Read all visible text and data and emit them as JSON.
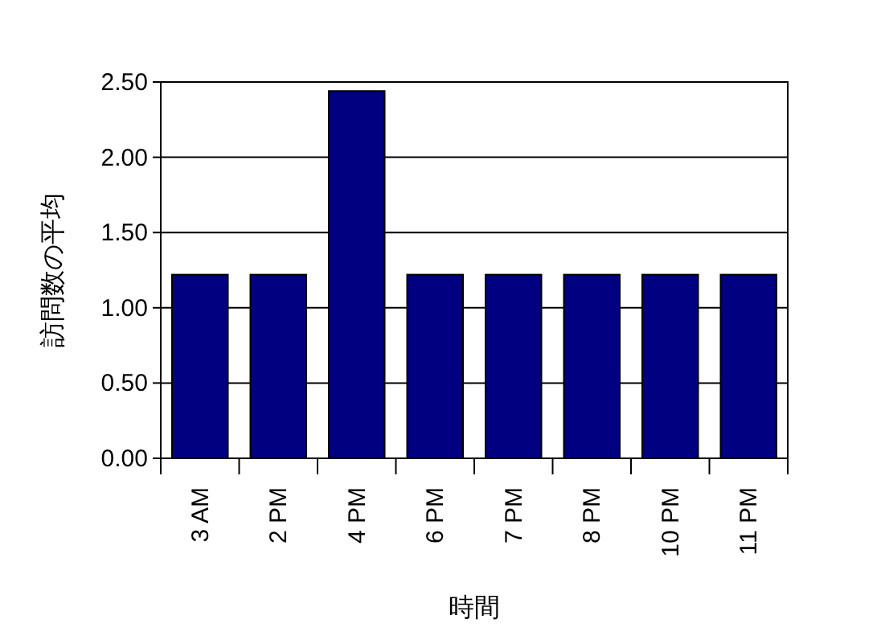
{
  "chart_data": {
    "type": "bar",
    "xlabel": "時間",
    "ylabel": "訪問数の平均",
    "categories": [
      "3 AM",
      "2 PM",
      "4 PM",
      "6 PM",
      "7 PM",
      "8 PM",
      "10 PM",
      "11 PM"
    ],
    "values": [
      1.22,
      1.22,
      2.44,
      1.22,
      1.22,
      1.22,
      1.22,
      1.22
    ],
    "color": "#000080",
    "ylim": [
      0,
      2.5
    ],
    "yticks": [
      {
        "value": 0,
        "label": "0.00"
      },
      {
        "value": 0.5,
        "label": "0.50"
      },
      {
        "value": 1,
        "label": "1.00"
      },
      {
        "value": 1.5,
        "label": "1.50"
      },
      {
        "value": 2,
        "label": "2.00"
      },
      {
        "value": 2.5,
        "label": "2.50"
      }
    ],
    "grid": "y"
  }
}
